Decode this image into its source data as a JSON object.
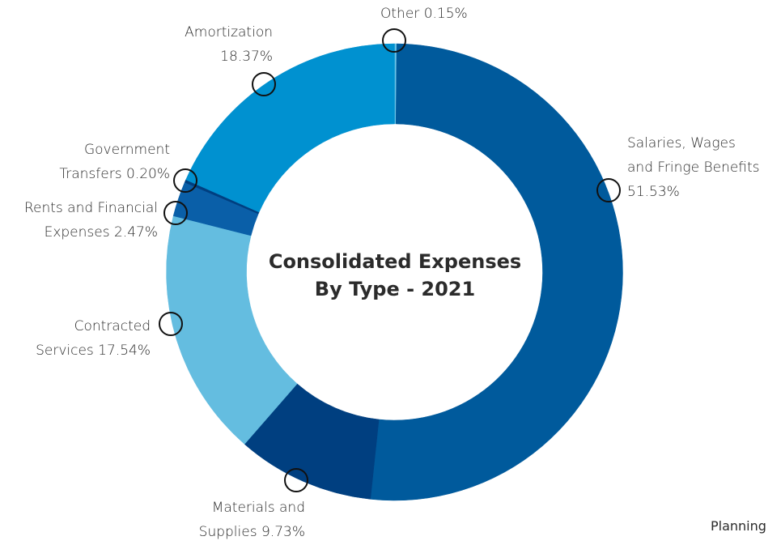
{
  "chart_data": {
    "type": "donut",
    "title": "Consolidated Expenses By Type - 2021",
    "categories": [
      "Other",
      "Salaries, Wages and Fringe Benefits",
      "Materials and Supplies",
      "Contracted Services",
      "Rents and Financial Expenses",
      "Government Transfers",
      "Amortization"
    ],
    "values": [
      0.15,
      51.53,
      9.73,
      17.54,
      2.47,
      0.2,
      18.37
    ],
    "value_labels": [
      "0.15%",
      "51.53%",
      "9.73%",
      "17.54%",
      "2.47%",
      "0.20%",
      "18.37%"
    ],
    "colors": [
      "#6cc4e8",
      "#005a9c",
      "#003f80",
      "#64bde0",
      "#0a5fa8",
      "#003f80",
      "#0091d0"
    ]
  },
  "footer": "Planning"
}
